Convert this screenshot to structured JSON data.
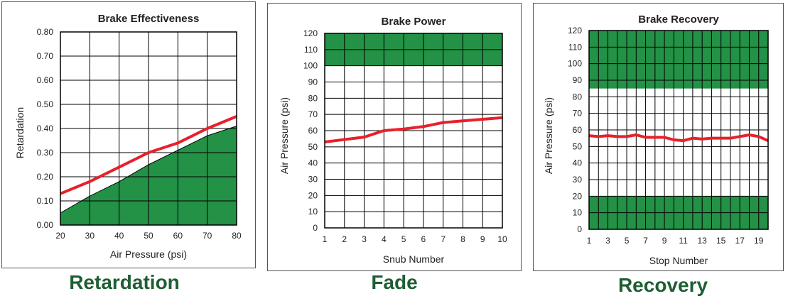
{
  "colors": {
    "fill": "#239146",
    "line": "#e8202a",
    "grid": "#000000",
    "caption": "#1e5e34"
  },
  "captions": [
    "Retardation",
    "Fade",
    "Recovery"
  ],
  "chart_data": [
    {
      "type": "area",
      "title": "Brake Effectiveness",
      "xlabel": "Air Pressure (psi)",
      "ylabel": "Retardation",
      "x": [
        20,
        30,
        40,
        50,
        60,
        70,
        80
      ],
      "xticks": [
        "20",
        "30",
        "40",
        "50",
        "60",
        "70",
        "80"
      ],
      "yticks": [
        "0.00",
        "0.10",
        "0.20",
        "0.30",
        "0.40",
        "0.50",
        "0.60",
        "0.70",
        "0.80"
      ],
      "xlim": [
        20,
        80
      ],
      "ylim": [
        0,
        0.8
      ],
      "grid": true,
      "series": [
        {
          "kind": "area",
          "values": [
            0.05,
            0.12,
            0.18,
            0.25,
            0.31,
            0.37,
            0.41
          ]
        },
        {
          "kind": "line",
          "values": [
            0.13,
            0.18,
            0.24,
            0.3,
            0.34,
            0.4,
            0.45
          ]
        }
      ]
    },
    {
      "type": "line",
      "title": "Brake Power",
      "xlabel": "Snub Number",
      "ylabel": "Air Pressure (psi)",
      "x": [
        1,
        2,
        3,
        4,
        5,
        6,
        7,
        8,
        9,
        10
      ],
      "xticks": [
        "1",
        "2",
        "3",
        "4",
        "5",
        "6",
        "7",
        "8",
        "9",
        "10"
      ],
      "yticks": [
        "0",
        "10",
        "20",
        "30",
        "40",
        "50",
        "60",
        "70",
        "80",
        "90",
        "100",
        "110",
        "120"
      ],
      "xlim": [
        1,
        10
      ],
      "ylim": [
        0,
        120
      ],
      "grid": true,
      "bands": [
        [
          100,
          120
        ]
      ],
      "series": [
        {
          "kind": "line",
          "values": [
            53,
            54.5,
            56,
            60,
            61,
            62.5,
            65,
            66,
            67,
            68
          ]
        }
      ]
    },
    {
      "type": "line",
      "title": "Brake Recovery",
      "xlabel": "Stop Number",
      "ylabel": "Air Pressure (psi)",
      "x": [
        1,
        2,
        3,
        4,
        5,
        6,
        7,
        8,
        9,
        10,
        11,
        12,
        13,
        14,
        15,
        16,
        17,
        18,
        19,
        20
      ],
      "xticks": [
        "1",
        "3",
        "5",
        "7",
        "9",
        "11",
        "13",
        "15",
        "17",
        "19"
      ],
      "xtick_values": [
        1,
        3,
        5,
        7,
        9,
        11,
        13,
        15,
        17,
        19
      ],
      "yticks": [
        "0",
        "10",
        "20",
        "30",
        "40",
        "50",
        "60",
        "70",
        "80",
        "90",
        "100",
        "110",
        "120"
      ],
      "xlim": [
        1,
        20
      ],
      "ylim": [
        0,
        120
      ],
      "grid": true,
      "bands": [
        [
          85,
          120
        ],
        [
          0,
          20
        ]
      ],
      "series": [
        {
          "kind": "line",
          "values": [
            56.5,
            56,
            56.5,
            56,
            56,
            57,
            55.5,
            55.5,
            55.5,
            54,
            53.5,
            55,
            54.5,
            55,
            55,
            55,
            56,
            57,
            56,
            53.5
          ]
        }
      ]
    }
  ]
}
